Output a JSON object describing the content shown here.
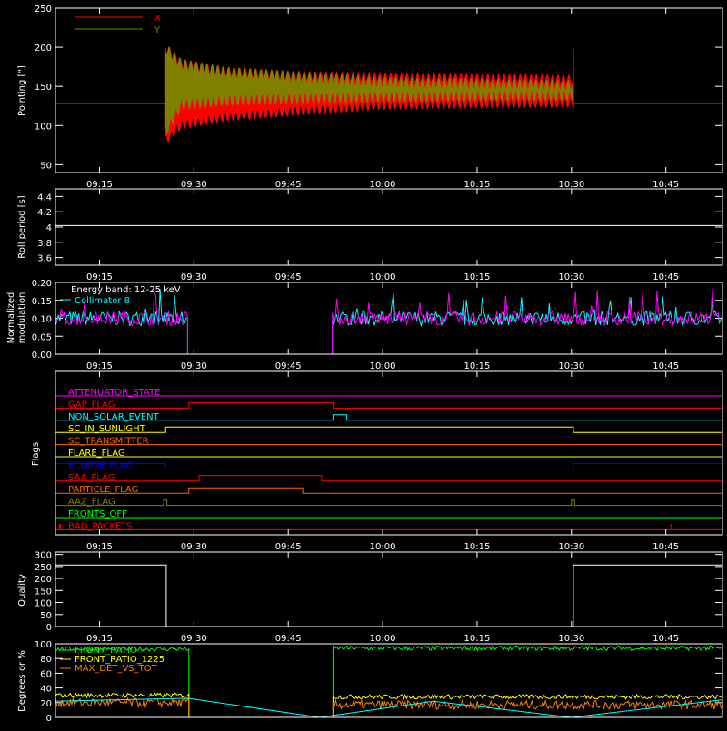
{
  "colors": {
    "frame": "#ffffff",
    "text": "#ffffff",
    "x_series": "#ff0000",
    "y_series": "#808000",
    "baseline": "#a0a000",
    "modulation_a": "#00ffff",
    "modulation_b": "#ff00ff",
    "flags": [
      "#ff00ff",
      "#ff0000",
      "#00ffff",
      "#ffff00",
      "#ff6400",
      "#ffff00",
      "#0000ff",
      "#ff0000",
      "#ff6400",
      "#808000",
      "#00ff00",
      "#ff0000"
    ],
    "degrees_front_ratio": "#00ff00",
    "degrees_front_ratio_1225": "#ffff00",
    "degrees_max_det": "#ff8000",
    "degrees_cyan": "#00ffff"
  },
  "time_axis": {
    "ticks": [
      "09:15",
      "09:30",
      "09:45",
      "10:00",
      "10:15",
      "10:30",
      "10:45"
    ],
    "tick_minutes": [
      555,
      570,
      585,
      600,
      615,
      630,
      645
    ],
    "range_minutes": [
      548,
      654
    ]
  },
  "chart_data": [
    {
      "id": "pointing",
      "type": "line",
      "ylabel": "Pointing [\"]",
      "ylim": [
        40,
        250
      ],
      "yticks": [
        50,
        100,
        150,
        200,
        250
      ],
      "legend": [
        "X",
        "Y"
      ],
      "legend_placement": "top-left",
      "start_minute": 565.5,
      "end_minute": 630.3,
      "baseline": 128,
      "series": [
        {
          "name": "X",
          "envelope": {
            "x": [
              565.5,
              568,
              575,
              585,
              600,
              615,
              630
            ],
            "upper": [
              205,
              185,
              175,
              170,
              168,
              167,
              165
            ],
            "lower": [
              75,
              95,
              105,
              112,
              120,
              122,
              123
            ]
          }
        },
        {
          "name": "Y",
          "envelope": {
            "x": [
              565.5,
              568,
              575,
              585,
              600,
              615,
              630
            ],
            "upper": [
              205,
              185,
              175,
              170,
              162,
              160,
              158
            ],
            "lower": [
              85,
              120,
              125,
              128,
              130,
              131,
              132
            ]
          }
        }
      ]
    },
    {
      "id": "roll",
      "type": "line",
      "ylabel": "Roll period [s]",
      "ylim": [
        3.5,
        4.5
      ],
      "yticks": [
        3.6,
        3.8,
        4.0,
        4.2,
        4.4
      ],
      "series": [
        {
          "values_constant": 4.02
        }
      ]
    },
    {
      "id": "modulation",
      "type": "line",
      "ylabel": "Normalized modulation",
      "ylim": [
        0.0,
        0.2
      ],
      "yticks": [
        "0.00",
        "0.05",
        "0.10",
        "0.15",
        "0.20"
      ],
      "annotation": "Energy band: 12-25 keV",
      "legend": [
        "Collimator 8"
      ],
      "segments": [
        {
          "from": 548,
          "to": 569,
          "mean": 0.1
        },
        {
          "from": 569,
          "to": 592,
          "mean": 0.0
        },
        {
          "from": 592,
          "to": 654,
          "mean": 0.1
        }
      ]
    },
    {
      "id": "flags",
      "type": "line",
      "ylabel": "Flags",
      "flags": [
        {
          "name": "ATTENUATOR_STATE",
          "high": []
        },
        {
          "name": "GAP_FLAG",
          "high": [
            [
              569.2,
              592.1
            ]
          ]
        },
        {
          "name": "NON_SOLAR_EVENT",
          "high": [
            [
              592.1,
              594.3
            ]
          ]
        },
        {
          "name": "SC_IN_SUNLIGHT",
          "high": [
            [
              565.5,
              630.3
            ]
          ]
        },
        {
          "name": "SC_TRANSMITTER",
          "high": []
        },
        {
          "name": "FLARE_FLAG",
          "high": []
        },
        {
          "name": "ECLIPSE_FLAG",
          "high": [
            [
              548,
              565.5
            ],
            [
              630.3,
              654
            ]
          ]
        },
        {
          "name": "SAA_FLAG",
          "high": [
            [
              570.8,
              590.3
            ]
          ]
        },
        {
          "name": "PARTICLE_FLAG",
          "high": [
            [
              569.2,
              587.3
            ]
          ]
        },
        {
          "name": "AAZ_FLAG",
          "high": [
            [
              565.2,
              565.7
            ],
            [
              630.0,
              630.5
            ]
          ]
        },
        {
          "name": "FRONTS_OFF",
          "high": []
        },
        {
          "name": "BAD_PACKETS",
          "high": [
            [
              548.6,
              548.8
            ],
            [
              645.8,
              646.0
            ]
          ]
        }
      ]
    },
    {
      "id": "quality",
      "type": "line",
      "ylabel": "Quality",
      "ylim": [
        0,
        310
      ],
      "yticks": [
        0,
        50,
        100,
        150,
        200,
        250,
        300
      ],
      "segments": [
        {
          "from": 548,
          "to": 565.6,
          "value": 256
        },
        {
          "from": 565.6,
          "to": 630.3,
          "value": 0
        },
        {
          "from": 630.3,
          "to": 654,
          "value": 256
        }
      ]
    },
    {
      "id": "degrees",
      "type": "line",
      "ylabel": "Degrees or %",
      "ylim": [
        0,
        100
      ],
      "yticks": [
        0,
        20,
        40,
        60,
        80,
        100
      ],
      "legend": [
        "FRONT_RATIO",
        "FRONT_RATIO_1225",
        "MAX_DET_VS_TOT"
      ],
      "legend_placement": "top-left",
      "segments": [
        {
          "from": 548,
          "to": 569.2,
          "front_ratio": 93,
          "front_ratio_1225": 30,
          "max_det": 20
        },
        {
          "from": 569.2,
          "to": 592.1,
          "front_ratio": 0,
          "front_ratio_1225": 0,
          "max_det": 0
        },
        {
          "from": 592.1,
          "to": 654,
          "front_ratio": 94,
          "front_ratio_1225": 28,
          "max_det": 17
        }
      ],
      "cyan_series": {
        "x": [
          548,
          569,
          590,
          608,
          630,
          654
        ],
        "y": [
          22,
          26,
          0,
          22,
          0,
          24
        ]
      }
    }
  ]
}
